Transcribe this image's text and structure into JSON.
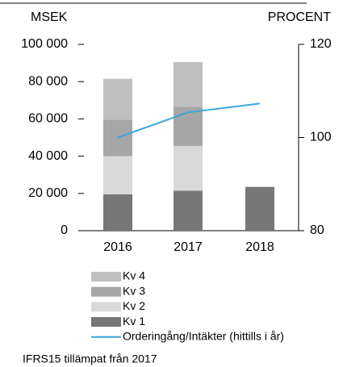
{
  "chart_data": {
    "type": "bar",
    "stacked": true,
    "ylabel": "MSEK",
    "y2label": "PROCENT",
    "categories": [
      "2016",
      "2017",
      "2018"
    ],
    "series": [
      {
        "name": "Kv 1",
        "color": "#777777",
        "values": [
          19500,
          21500,
          23500
        ]
      },
      {
        "name": "Kv 2",
        "color": "#d9d9d9",
        "values": [
          20500,
          24000,
          null
        ]
      },
      {
        "name": "Kv 3",
        "color": "#a6a6a6",
        "values": [
          19500,
          21000,
          null
        ]
      },
      {
        "name": "Kv 4",
        "color": "#bfbfbf",
        "values": [
          22000,
          24000,
          null
        ]
      },
      {
        "name": "Orderingång/Intäkter (hittills i år)",
        "color": "#3aa8dc",
        "type": "line",
        "axis": "y2",
        "values": [
          100,
          105.4,
          107.3
        ]
      }
    ],
    "ylim": [
      0,
      100000
    ],
    "yticks": [
      0,
      {
        "value": 20000,
        "label": "20 000"
      },
      {
        "value": 40000,
        "label": "40 000"
      },
      {
        "value": 60000,
        "label": "60 000"
      },
      {
        "value": 80000,
        "label": "80 000"
      },
      {
        "value": 100000,
        "label": "100 000"
      }
    ],
    "y2lim": [
      80,
      120
    ],
    "y2ticks": [
      80,
      100,
      120
    ],
    "note": "IFRS15 tillämpat från 2017"
  }
}
